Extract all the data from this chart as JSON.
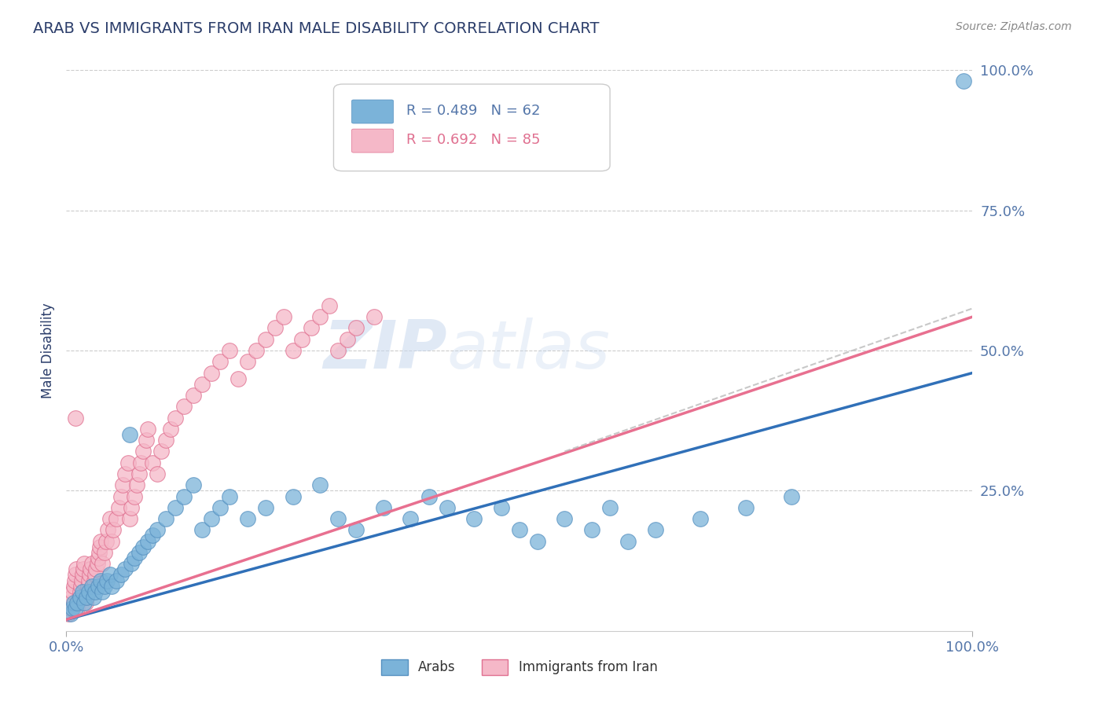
{
  "title": "ARAB VS IMMIGRANTS FROM IRAN MALE DISABILITY CORRELATION CHART",
  "source": "Source: ZipAtlas.com",
  "ylabel": "Male Disability",
  "xlim": [
    0,
    1
  ],
  "ylim": [
    0,
    1
  ],
  "series_arab": {
    "color": "#7bb3d9",
    "edge_color": "#5590c0",
    "R": 0.489,
    "N": 62,
    "trend_color": "#3070b8",
    "trend_start_y": 0.02,
    "trend_end_y": 0.46
  },
  "series_iran": {
    "color": "#f5b8c8",
    "edge_color": "#e07090",
    "R": 0.692,
    "N": 85,
    "trend_color": "#e87090",
    "trend_start_y": 0.02,
    "trend_end_y": 0.56
  },
  "watermark_zip": "ZIP",
  "watermark_atlas": "atlas",
  "background_color": "#ffffff",
  "grid_color": "#cccccc",
  "title_color": "#2c3e6b",
  "axis_label_color": "#5577aa",
  "arab_x": [
    0.005,
    0.007,
    0.008,
    0.01,
    0.012,
    0.015,
    0.018,
    0.02,
    0.022,
    0.025,
    0.028,
    0.03,
    0.032,
    0.035,
    0.038,
    0.04,
    0.042,
    0.045,
    0.048,
    0.05,
    0.055,
    0.06,
    0.065,
    0.07,
    0.072,
    0.075,
    0.08,
    0.085,
    0.09,
    0.095,
    0.1,
    0.11,
    0.12,
    0.13,
    0.14,
    0.15,
    0.16,
    0.17,
    0.18,
    0.2,
    0.22,
    0.25,
    0.28,
    0.3,
    0.32,
    0.35,
    0.38,
    0.4,
    0.42,
    0.45,
    0.48,
    0.5,
    0.52,
    0.55,
    0.58,
    0.6,
    0.62,
    0.65,
    0.7,
    0.75,
    0.8,
    0.99
  ],
  "arab_y": [
    0.03,
    0.04,
    0.05,
    0.04,
    0.05,
    0.06,
    0.07,
    0.05,
    0.06,
    0.07,
    0.08,
    0.06,
    0.07,
    0.08,
    0.09,
    0.07,
    0.08,
    0.09,
    0.1,
    0.08,
    0.09,
    0.1,
    0.11,
    0.35,
    0.12,
    0.13,
    0.14,
    0.15,
    0.16,
    0.17,
    0.18,
    0.2,
    0.22,
    0.24,
    0.26,
    0.18,
    0.2,
    0.22,
    0.24,
    0.2,
    0.22,
    0.24,
    0.26,
    0.2,
    0.18,
    0.22,
    0.2,
    0.24,
    0.22,
    0.2,
    0.22,
    0.18,
    0.16,
    0.2,
    0.18,
    0.22,
    0.16,
    0.18,
    0.2,
    0.22,
    0.24,
    0.98
  ],
  "iran_x": [
    0.002,
    0.004,
    0.005,
    0.006,
    0.007,
    0.008,
    0.009,
    0.01,
    0.011,
    0.012,
    0.013,
    0.014,
    0.015,
    0.016,
    0.017,
    0.018,
    0.019,
    0.02,
    0.021,
    0.022,
    0.023,
    0.024,
    0.025,
    0.026,
    0.027,
    0.028,
    0.03,
    0.031,
    0.032,
    0.033,
    0.034,
    0.035,
    0.036,
    0.037,
    0.038,
    0.04,
    0.042,
    0.044,
    0.046,
    0.048,
    0.05,
    0.052,
    0.055,
    0.058,
    0.06,
    0.062,
    0.065,
    0.068,
    0.07,
    0.072,
    0.075,
    0.078,
    0.08,
    0.082,
    0.085,
    0.088,
    0.09,
    0.095,
    0.1,
    0.105,
    0.11,
    0.115,
    0.12,
    0.13,
    0.14,
    0.15,
    0.16,
    0.17,
    0.18,
    0.19,
    0.2,
    0.21,
    0.22,
    0.23,
    0.24,
    0.25,
    0.26,
    0.27,
    0.28,
    0.29,
    0.3,
    0.31,
    0.32,
    0.34,
    0.01
  ],
  "iran_y": [
    0.03,
    0.04,
    0.05,
    0.06,
    0.07,
    0.08,
    0.09,
    0.1,
    0.11,
    0.04,
    0.05,
    0.06,
    0.07,
    0.08,
    0.09,
    0.1,
    0.11,
    0.12,
    0.05,
    0.06,
    0.07,
    0.08,
    0.09,
    0.1,
    0.11,
    0.12,
    0.08,
    0.09,
    0.1,
    0.11,
    0.12,
    0.13,
    0.14,
    0.15,
    0.16,
    0.12,
    0.14,
    0.16,
    0.18,
    0.2,
    0.16,
    0.18,
    0.2,
    0.22,
    0.24,
    0.26,
    0.28,
    0.3,
    0.2,
    0.22,
    0.24,
    0.26,
    0.28,
    0.3,
    0.32,
    0.34,
    0.36,
    0.3,
    0.28,
    0.32,
    0.34,
    0.36,
    0.38,
    0.4,
    0.42,
    0.44,
    0.46,
    0.48,
    0.5,
    0.45,
    0.48,
    0.5,
    0.52,
    0.54,
    0.56,
    0.5,
    0.52,
    0.54,
    0.56,
    0.58,
    0.5,
    0.52,
    0.54,
    0.56,
    0.38
  ]
}
